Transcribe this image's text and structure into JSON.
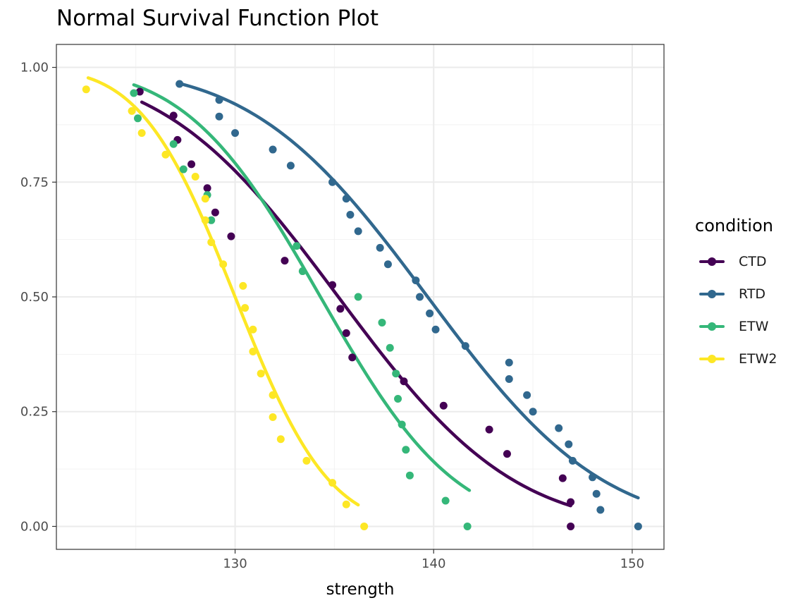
{
  "chart_data": {
    "type": "line",
    "title": "Normal Survival Function Plot",
    "xlabel": "strength",
    "ylabel": "",
    "xlim": [
      121,
      151.6
    ],
    "ylim": [
      -0.05,
      1.05
    ],
    "x_ticks": [
      130,
      140,
      150
    ],
    "x_tick_labels": [
      "130",
      "140",
      "150"
    ],
    "y_ticks": [
      0,
      0.25,
      0.5,
      0.75,
      1.0
    ],
    "y_tick_labels": [
      "0.00",
      "0.25",
      "0.50",
      "0.75",
      "1.00"
    ],
    "grid": true,
    "legend": {
      "title": "condition",
      "position": "right"
    },
    "series": [
      {
        "name": "CTD",
        "color": "#440154",
        "fit": {
          "mean": 135.2,
          "sd": 6.9,
          "x_range": [
            125.3,
            146.9
          ]
        },
        "points": [
          [
            125.2,
            0.947
          ],
          [
            126.9,
            0.895
          ],
          [
            127.1,
            0.842
          ],
          [
            127.8,
            0.789
          ],
          [
            128.6,
            0.737
          ],
          [
            129.0,
            0.684
          ],
          [
            129.8,
            0.632
          ],
          [
            132.5,
            0.579
          ],
          [
            134.9,
            0.526
          ],
          [
            135.3,
            0.474
          ],
          [
            135.6,
            0.421
          ],
          [
            135.9,
            0.368
          ],
          [
            138.5,
            0.316
          ],
          [
            140.5,
            0.263
          ],
          [
            142.8,
            0.211
          ],
          [
            143.7,
            0.158
          ],
          [
            146.5,
            0.105
          ],
          [
            146.9,
            0.053
          ],
          [
            146.9,
            0.0
          ]
        ]
      },
      {
        "name": "RTD",
        "color": "#31688E",
        "fit": {
          "mean": 139.7,
          "sd": 6.9,
          "x_range": [
            127.2,
            150.3
          ]
        },
        "points": [
          [
            127.2,
            0.964
          ],
          [
            129.2,
            0.929
          ],
          [
            129.2,
            0.893
          ],
          [
            130.0,
            0.857
          ],
          [
            131.9,
            0.821
          ],
          [
            132.8,
            0.786
          ],
          [
            134.9,
            0.75
          ],
          [
            135.6,
            0.714
          ],
          [
            135.8,
            0.679
          ],
          [
            136.2,
            0.643
          ],
          [
            137.3,
            0.607
          ],
          [
            137.7,
            0.571
          ],
          [
            139.1,
            0.536
          ],
          [
            139.3,
            0.5
          ],
          [
            139.8,
            0.464
          ],
          [
            140.1,
            0.429
          ],
          [
            141.6,
            0.393
          ],
          [
            143.8,
            0.357
          ],
          [
            143.8,
            0.321
          ],
          [
            144.7,
            0.286
          ],
          [
            145.0,
            0.25
          ],
          [
            146.3,
            0.214
          ],
          [
            146.8,
            0.179
          ],
          [
            147.0,
            0.143
          ],
          [
            148.0,
            0.107
          ],
          [
            148.2,
            0.071
          ],
          [
            148.4,
            0.036
          ],
          [
            150.3,
            0.0
          ]
        ]
      },
      {
        "name": "ETW",
        "color": "#35B779",
        "fit": {
          "mean": 134.3,
          "sd": 5.3,
          "x_range": [
            124.9,
            141.8
          ]
        },
        "points": [
          [
            124.9,
            0.944
          ],
          [
            125.1,
            0.889
          ],
          [
            126.9,
            0.833
          ],
          [
            127.4,
            0.778
          ],
          [
            128.6,
            0.722
          ],
          [
            128.8,
            0.667
          ],
          [
            133.1,
            0.611
          ],
          [
            133.4,
            0.556
          ],
          [
            136.2,
            0.5
          ],
          [
            137.4,
            0.444
          ],
          [
            137.8,
            0.389
          ],
          [
            138.1,
            0.333
          ],
          [
            138.2,
            0.278
          ],
          [
            138.4,
            0.222
          ],
          [
            138.6,
            0.167
          ],
          [
            138.8,
            0.111
          ],
          [
            140.6,
            0.056
          ],
          [
            141.7,
            0.0
          ]
        ]
      },
      {
        "name": "ETW2",
        "color": "#FDE725",
        "fit": {
          "mean": 130.0,
          "sd": 3.7,
          "x_range": [
            122.6,
            136.2
          ]
        },
        "points": [
          [
            122.5,
            0.952
          ],
          [
            124.8,
            0.905
          ],
          [
            125.3,
            0.857
          ],
          [
            126.5,
            0.81
          ],
          [
            128.0,
            0.762
          ],
          [
            128.5,
            0.714
          ],
          [
            128.5,
            0.667
          ],
          [
            128.8,
            0.619
          ],
          [
            129.4,
            0.571
          ],
          [
            130.4,
            0.524
          ],
          [
            130.5,
            0.476
          ],
          [
            130.9,
            0.429
          ],
          [
            130.9,
            0.381
          ],
          [
            131.3,
            0.333
          ],
          [
            131.9,
            0.286
          ],
          [
            131.9,
            0.238
          ],
          [
            132.3,
            0.19
          ],
          [
            133.6,
            0.143
          ],
          [
            134.9,
            0.095
          ],
          [
            135.6,
            0.048
          ],
          [
            136.5,
            0.0
          ]
        ]
      }
    ]
  }
}
